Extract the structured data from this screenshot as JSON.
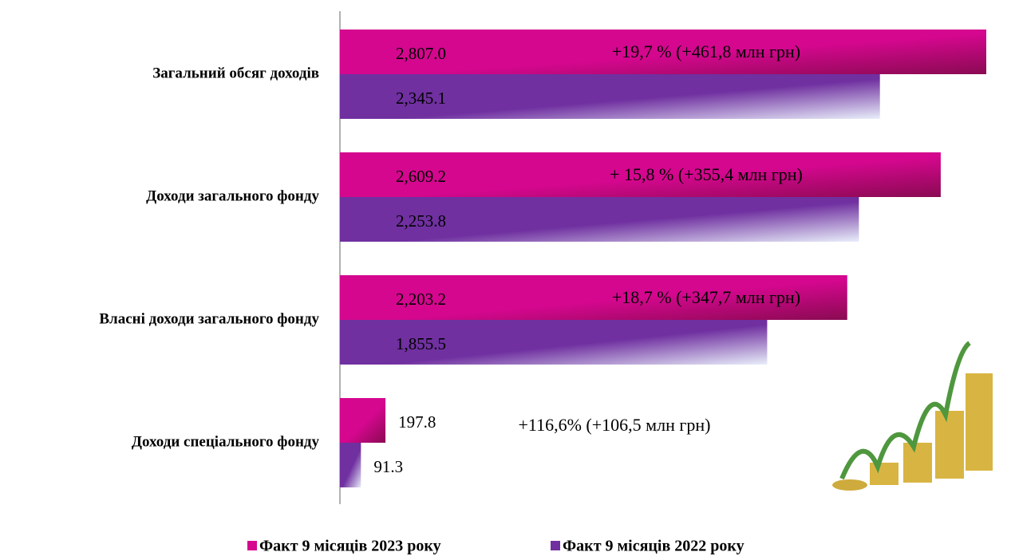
{
  "chart_data": {
    "type": "bar",
    "orientation": "horizontal",
    "categories": [
      "Загальний обсяг доходів",
      "Доходи загального фонду",
      "Власні доходи загального фонду",
      "Доходи спеціального фонду"
    ],
    "series": [
      {
        "name": "Факт 9 місяців 2023 року",
        "color": "#d4078e",
        "values": [
          2807.0,
          2609.2,
          2203.2,
          197.8
        ],
        "value_labels": [
          "2,807.0",
          "2,609.2",
          "2,203.2",
          "197.8"
        ]
      },
      {
        "name": "Факт 9 місяців 2022 року",
        "color": "#7030a0",
        "values": [
          2345.1,
          2253.8,
          1855.5,
          91.3
        ],
        "value_labels": [
          "2,345.1",
          "2,253.8",
          "1,855.5",
          "91.3"
        ]
      }
    ],
    "annotations": [
      "+19,7 % (+461,8 млн грн)",
      "+ 15,8 % (+355,4 млн грн)",
      "+18,7 % (+347,7 млн грн)",
      "+116,6% (+106,5 млн грн)"
    ],
    "xlim": [
      0,
      2807
    ],
    "legend": "bottom"
  }
}
